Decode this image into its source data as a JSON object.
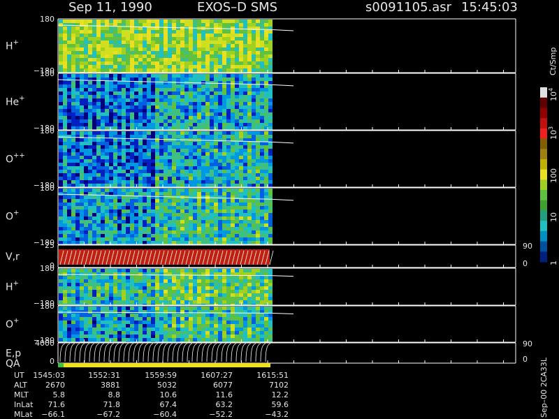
{
  "header": {
    "date": "Sep 11, 1990",
    "instrument": "EXOS–D SMS",
    "file": "s0091105.asr",
    "time": "15:45:03"
  },
  "panels": [
    {
      "name": "H",
      "sup": "+",
      "top_tick": "180",
      "bottom_tick": "−180"
    },
    {
      "name": "He",
      "sup": "+",
      "top_tick": "180",
      "bottom_tick": "−180"
    },
    {
      "name": "O",
      "sup": "++",
      "top_tick": "180",
      "bottom_tick": "−180"
    },
    {
      "name": "O",
      "sup": "+",
      "top_tick": "180",
      "bottom_tick": "−180"
    },
    {
      "name": "V,r",
      "top_tick": "25",
      "bottom_tick": "0",
      "right_top_tick": "90",
      "right_bottom_tick": "0"
    },
    {
      "name": "H",
      "sup": "+",
      "top_tick": "180",
      "bottom_tick": "−180"
    },
    {
      "name": "O",
      "sup": "+",
      "top_tick": "180",
      "bottom_tick": "−180"
    },
    {
      "name": "E,p",
      "top_tick": "4000",
      "bottom_tick": "0",
      "right_top_tick": "90",
      "right_bottom_tick": "0"
    }
  ],
  "qa_label": "QA",
  "colorbar": {
    "unit": "Ct/Smp",
    "labels": [
      {
        "base": "10",
        "exp": "4"
      },
      {
        "base": "10",
        "exp": "3"
      },
      {
        "base": "100"
      },
      {
        "base": "10"
      },
      {
        "base": "1"
      }
    ]
  },
  "footer_id": "Sep–00 2CA33L",
  "table": {
    "rows": [
      [
        "UT",
        "1545:03",
        "1552:31",
        "1559:59",
        "1607:27",
        "1615:51"
      ],
      [
        "ALT",
        "2670",
        "3881",
        "5032",
        "6077",
        "7102"
      ],
      [
        "MLT",
        "5.8",
        "8.8",
        "10.6",
        "11.6",
        "12.2"
      ],
      [
        "InLat",
        "71.6",
        "71.8",
        "67.4",
        "63.2",
        "59.6"
      ],
      [
        "MLat",
        "−66.1",
        "−67.2",
        "−60.4",
        "−52.2",
        "−43.2"
      ]
    ]
  }
}
